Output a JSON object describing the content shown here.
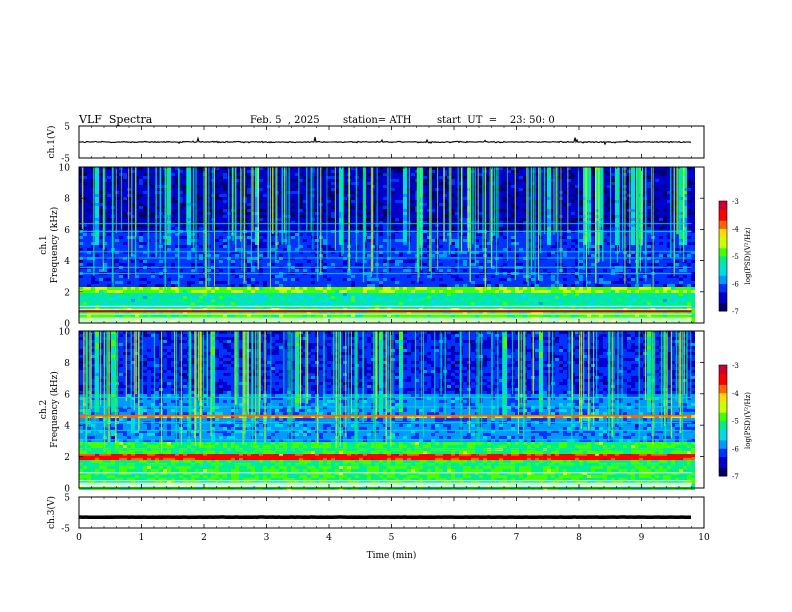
{
  "header": {
    "title": "VLF  Spectra",
    "date": "Feb. 5  , 2025",
    "station": "station= ATH",
    "start": "start  UT  =    23: 50: 0"
  },
  "chart_data": [
    {
      "type": "line",
      "panel": "ch1-waveform",
      "ylabel": "ch.1(V)",
      "xlim": [
        0,
        10
      ],
      "ylim": [
        -5,
        5
      ],
      "yticks": [
        "5",
        "-5"
      ],
      "note": "noisy trace centred near 0 V, about ±0.5 V, with occasional spikes up to ~+2 V"
    },
    {
      "type": "heatmap",
      "panel": "ch1-spectrogram",
      "ylabel": "ch.1\nFrequency  (kHz)",
      "xlim": [
        0,
        10
      ],
      "ylim": [
        0,
        10
      ],
      "yticks": [
        "0",
        "2",
        "4",
        "6",
        "8",
        "10"
      ],
      "data_end_min": 9.8,
      "colorbar": {
        "label": "log(PSD)(V²/Hz)",
        "range": [
          -7,
          -3
        ],
        "ticks": [
          "-3",
          "-4",
          "-5",
          "-6",
          "-7"
        ]
      }
    },
    {
      "type": "heatmap",
      "panel": "ch2-spectrogram",
      "ylabel": "ch.2\nFrequency  (kHz)",
      "xlim": [
        0,
        10
      ],
      "ylim": [
        0,
        10
      ],
      "yticks": [
        "0",
        "2",
        "4",
        "6",
        "8",
        "10"
      ],
      "data_end_min": 9.8,
      "colorbar": {
        "label": "log(PSD)(V²/Hz)",
        "range": [
          -7,
          -3
        ],
        "ticks": [
          "-3",
          "-4",
          "-5",
          "-6",
          "-7"
        ]
      }
    },
    {
      "type": "line",
      "panel": "ch3-waveform",
      "ylabel": "ch.3(V)",
      "xlim": [
        0,
        10
      ],
      "ylim": [
        -5,
        5
      ],
      "yticks": [
        "5",
        "-5"
      ],
      "xlabel": "Time  (min)",
      "xticks": [
        "0",
        "1",
        "2",
        "3",
        "4",
        "5",
        "6",
        "7",
        "8",
        "9",
        "10"
      ],
      "note": "flat thick trace near -1.5 V"
    }
  ],
  "colors": {
    "colormap": [
      "#000000",
      "#000066",
      "#0000cc",
      "#0033ff",
      "#0099ff",
      "#00dddd",
      "#00ee88",
      "#44ff00",
      "#ccff00",
      "#ffdd00",
      "#ff6600",
      "#ff0000",
      "#cc0033",
      "#ffffff"
    ]
  }
}
